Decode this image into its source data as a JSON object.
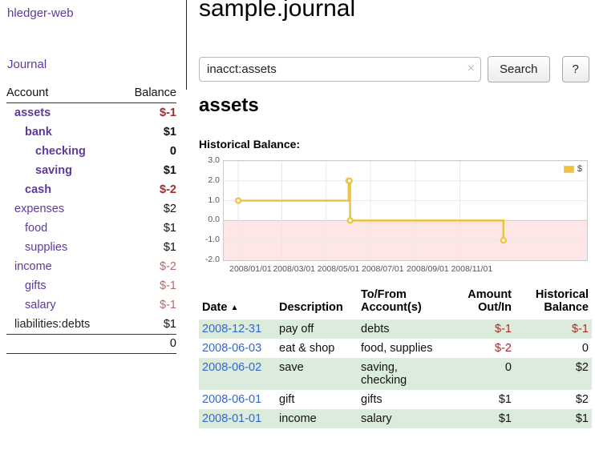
{
  "colors": {
    "accent": "#5d3a9b",
    "link_blue": "#3366cc",
    "negative": "#a52a2a",
    "negative_soft": "#b56a6a",
    "row_green": "#dcecdc",
    "chart_line": "#edc240",
    "chart_neg_bg": "#ffe6e6",
    "chart_grid": "#e8e8e8",
    "chart_zero_line": "#cccccc",
    "chart_border": "#cccccc"
  },
  "sidebar": {
    "brand": "hledger-web",
    "journal_link": "Journal",
    "columns": {
      "account": "Account",
      "balance": "Balance"
    },
    "items": [
      {
        "name": "assets",
        "balance": "$-1",
        "indent": 1,
        "bold": true,
        "neg": true
      },
      {
        "name": "bank",
        "balance": "$1",
        "indent": 2,
        "bold": true
      },
      {
        "name": "checking",
        "balance": "0",
        "indent": 3,
        "bold": true
      },
      {
        "name": "saving",
        "balance": "$1",
        "indent": 3,
        "bold": true
      },
      {
        "name": "cash",
        "balance": "$-2",
        "indent": 2,
        "bold": true,
        "neg": true
      },
      {
        "name": "expenses",
        "balance": "$2",
        "indent": 1
      },
      {
        "name": "food",
        "balance": "$1",
        "indent": 2
      },
      {
        "name": "supplies",
        "balance": "$1",
        "indent": 2
      },
      {
        "name": "income",
        "balance": "$-2",
        "indent": 1,
        "neg": true,
        "soft": true
      },
      {
        "name": "gifts",
        "balance": "$-1",
        "indent": 2,
        "neg": true,
        "soft": true
      },
      {
        "name": "salary",
        "balance": "$-1",
        "indent": 2,
        "neg": true,
        "soft": true
      },
      {
        "name": "liabilities:debts",
        "balance": "$1",
        "indent": 1,
        "dark": true
      }
    ],
    "total": "0"
  },
  "header": {
    "title": "sample.journal"
  },
  "search": {
    "value": "inacct:assets",
    "clear_icon": "×",
    "button_label": "Search",
    "help_label": "?"
  },
  "main": {
    "account_title": "assets",
    "chart_label": "Historical Balance:"
  },
  "chart_data": {
    "type": "line",
    "step": true,
    "title": "Historical Balance:",
    "series": [
      {
        "name": "$",
        "points": [
          [
            "2008-01-01",
            1
          ],
          [
            "2008-06-01",
            2
          ],
          [
            "2008-06-02",
            2
          ],
          [
            "2008-06-03",
            0
          ],
          [
            "2008-12-31",
            -1
          ]
        ]
      }
    ],
    "ylim": [
      -2,
      3
    ],
    "yticks": [
      3,
      2,
      1,
      0,
      -1,
      -2
    ],
    "xticks": [
      "2008/01/01",
      "2008/03/01",
      "2008/05/01",
      "2008/07/01",
      "2008/09/01",
      "2008/11/01"
    ],
    "grid": true,
    "negative_region_shaded": true,
    "legend": {
      "label": "$",
      "position": "top-right"
    }
  },
  "register": {
    "columns": {
      "date": "Date",
      "sort_icon": "▲",
      "description": "Description",
      "accounts": "To/From\nAccount(s)",
      "amount": "Amount\nOut/In",
      "balance": "Historical\nBalance"
    },
    "rows": [
      {
        "date": "2008-12-31",
        "description": "pay off",
        "accounts": "debts",
        "amount": "$-1",
        "amount_neg": true,
        "balance": "$-1",
        "balance_neg": true
      },
      {
        "date": "2008-06-03",
        "description": "eat & shop",
        "accounts": "food, supplies",
        "amount": "$-2",
        "amount_neg": true,
        "balance": "0",
        "balance_neg": false
      },
      {
        "date": "2008-06-02",
        "description": "save",
        "accounts": "saving, checking",
        "amount": "0",
        "amount_neg": false,
        "balance": "$2",
        "balance_neg": false
      },
      {
        "date": "2008-06-01",
        "description": "gift",
        "accounts": "gifts",
        "amount": "$1",
        "amount_neg": false,
        "balance": "$2",
        "balance_neg": false
      },
      {
        "date": "2008-01-01",
        "description": "income",
        "accounts": "salary",
        "amount": "$1",
        "amount_neg": false,
        "balance": "$1",
        "balance_neg": false
      }
    ]
  }
}
